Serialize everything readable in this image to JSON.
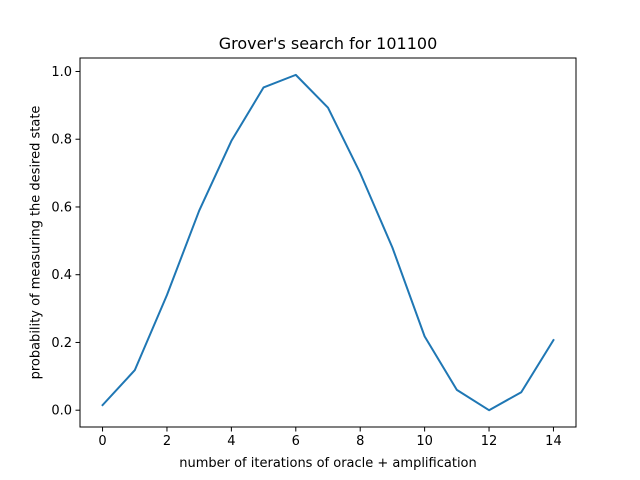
{
  "chart_data": {
    "type": "line",
    "title": "Grover's search for 101100",
    "xlabel": "number of iterations of oracle + amplification",
    "ylabel": "probability of measuring the desired state",
    "xlim": [
      -0.7,
      14.7
    ],
    "ylim": [
      -0.0496,
      1.0398
    ],
    "xticks": [
      0,
      2,
      4,
      6,
      8,
      10,
      12,
      14
    ],
    "xtick_labels": [
      "0",
      "2",
      "4",
      "6",
      "8",
      "10",
      "12",
      "14"
    ],
    "yticks": [
      0.0,
      0.2,
      0.4,
      0.6,
      0.8,
      1.0
    ],
    "ytick_labels": [
      "0.0",
      "0.2",
      "0.4",
      "0.6",
      "0.8",
      "1.0"
    ],
    "grid": false,
    "series": [
      {
        "color": "#1f77b4",
        "x": [
          0,
          1,
          2,
          3,
          4,
          5,
          6,
          7,
          8,
          9,
          10,
          11,
          12,
          13,
          14
        ],
        "values": [
          0.015,
          0.118,
          0.34,
          0.589,
          0.795,
          0.953,
          0.99,
          0.893,
          0.7,
          0.48,
          0.218,
          0.06,
          0.0,
          0.053,
          0.207
        ]
      }
    ]
  }
}
